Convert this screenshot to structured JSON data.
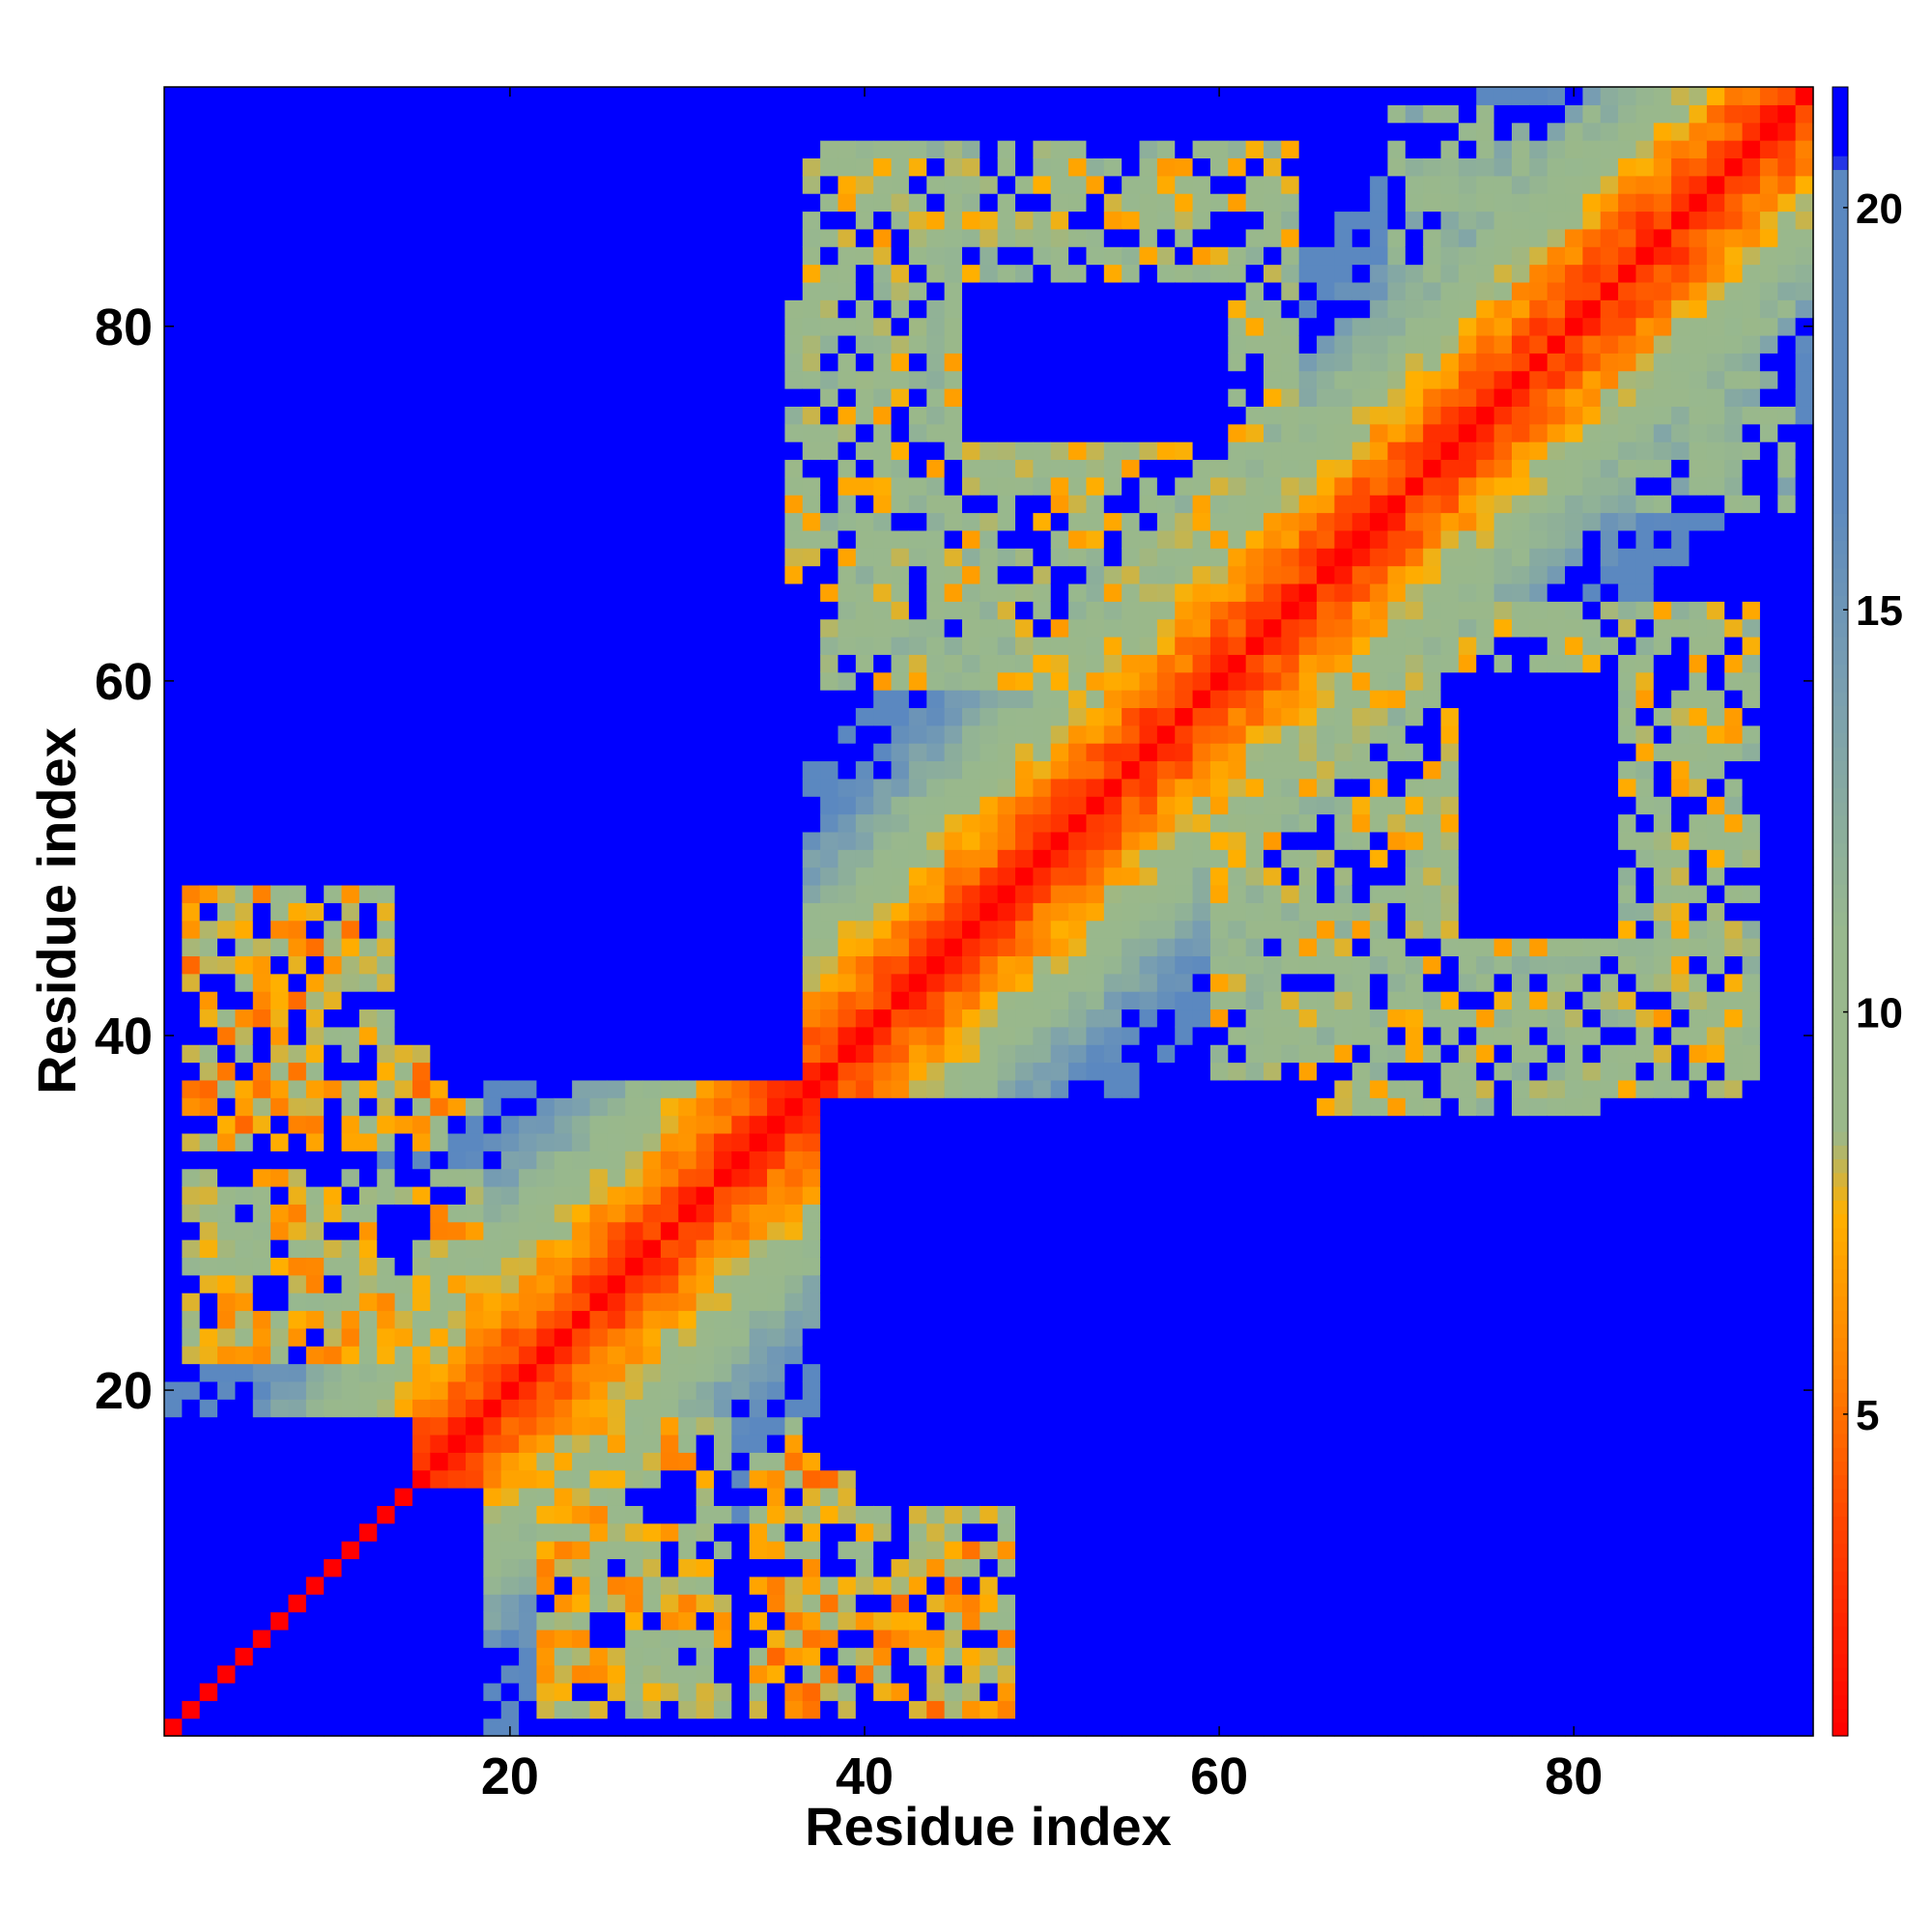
{
  "chart_data": {
    "type": "heatmap",
    "title": "",
    "xlabel": "Residue index",
    "ylabel": "Residue index",
    "n_residues": 93,
    "xlim": [
      1,
      93
    ],
    "ylim": [
      1,
      93
    ],
    "x_ticks": [
      20,
      40,
      60,
      80
    ],
    "y_ticks": [
      20,
      40,
      60,
      80
    ],
    "x_tick_labels": [
      "20",
      "40",
      "60",
      "80"
    ],
    "y_tick_labels": [
      "20",
      "40",
      "60",
      "80"
    ],
    "grid": false,
    "colorbar": {
      "range": [
        1,
        21.5
      ],
      "ticks": [
        5,
        10,
        15,
        20
      ],
      "tick_labels": [
        "5",
        "10",
        "15",
        "20"
      ],
      "color_stops": [
        {
          "value": 1,
          "color": "#ff0000"
        },
        {
          "value": 3.5,
          "color": "#ff4000"
        },
        {
          "value": 5.5,
          "color": "#ff8000"
        },
        {
          "value": 7.5,
          "color": "#ffb000"
        },
        {
          "value": 8.5,
          "color": "#9ab88a"
        },
        {
          "value": 11,
          "color": "#98b88e"
        },
        {
          "value": 14,
          "color": "#7a9fb0"
        },
        {
          "value": 16.5,
          "color": "#5b88c0"
        },
        {
          "value": 20.5,
          "color": "#5b88c0"
        },
        {
          "value": 20.6,
          "color": "#0000ff"
        },
        {
          "value": 21.5,
          "color": "#0000ff"
        }
      ]
    },
    "description_of_values": "Symmetric residue–residue distance map; values near 1 along the diagonal, up to >20 (saturated blue) far from the diagonal.",
    "structure": {
      "diagonal_value": 1,
      "secondary_contacts": [
        {
          "i_range": [
            22,
            32
          ],
          "j_range": [
            2,
            18
          ],
          "value": 8
        },
        {
          "i_range": [
            2,
            18
          ],
          "j_range": [
            36,
            48
          ],
          "value": 8
        },
        {
          "i_range": [
            34,
            46
          ],
          "j_range": [
            2,
            16
          ],
          "value": 7
        },
        {
          "i_range": [
            38,
            60
          ],
          "j_range": [
            60,
            82
          ],
          "value": 9
        },
        {
          "i_range": [
            66,
            90
          ],
          "j_range": [
            36,
            64
          ],
          "value": 9
        },
        {
          "i_range": [
            70,
            92
          ],
          "j_range": [
            70,
            92
          ],
          "value": 11
        }
      ],
      "far_blocks": [
        {
          "i_range": [
            16,
            36
          ],
          "j_range": [
            38,
            58
          ],
          "value": 21
        },
        {
          "i_range": [
            40,
            60
          ],
          "j_range": [
            14,
            36
          ],
          "value": 21
        },
        {
          "i_range": [
            1,
            14
          ],
          "j_range": [
            1,
            18
          ],
          "value": 21
        },
        {
          "i_range": [
            1,
            10
          ],
          "j_range": [
            66,
            93
          ],
          "value": 21
        },
        {
          "i_range": [
            72,
            93
          ],
          "j_range": [
            1,
            32
          ],
          "value": 21
        },
        {
          "i_range": [
            16,
            36
          ],
          "j_range": [
            82,
            93
          ],
          "value": 21
        },
        {
          "i_range": [
            46,
            60
          ],
          "j_range": [
            74,
            82
          ],
          "value": 21
        }
      ]
    }
  }
}
